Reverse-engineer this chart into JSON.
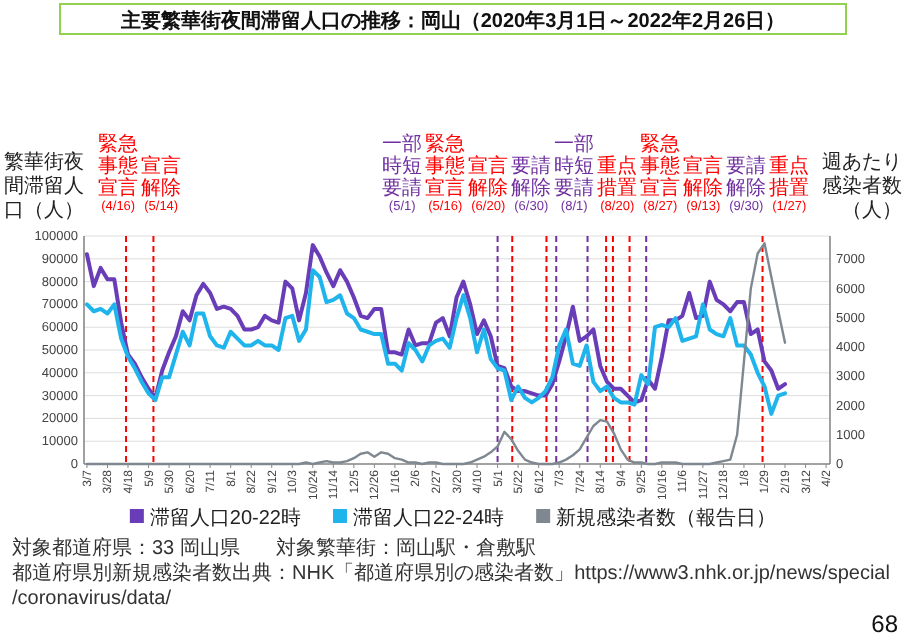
{
  "chart_data": {
    "type": "line",
    "title": "主要繁華街夜間滞留人口の推移：岡山（2020年3月1日～2022年2月26日）",
    "ylabel": "繁華街夜間滞留人口（人）",
    "y2label": "週あたり感染者数（人）",
    "x": [
      "2020-03-07",
      "2020-03-14",
      "2020-03-21",
      "2020-03-28",
      "2020-04-04",
      "2020-04-11",
      "2020-04-18",
      "2020-04-25",
      "2020-05-02",
      "2020-05-09",
      "2020-05-16",
      "2020-05-23",
      "2020-05-30",
      "2020-06-06",
      "2020-06-13",
      "2020-06-20",
      "2020-06-27",
      "2020-07-04",
      "2020-07-11",
      "2020-07-18",
      "2020-07-25",
      "2020-08-01",
      "2020-08-08",
      "2020-08-15",
      "2020-08-22",
      "2020-08-29",
      "2020-09-05",
      "2020-09-12",
      "2020-09-19",
      "2020-09-26",
      "2020-10-03",
      "2020-10-10",
      "2020-10-17",
      "2020-10-24",
      "2020-10-31",
      "2020-11-07",
      "2020-11-14",
      "2020-11-21",
      "2020-11-28",
      "2020-12-05",
      "2020-12-12",
      "2020-12-19",
      "2020-12-26",
      "2021-01-02",
      "2021-01-09",
      "2021-01-16",
      "2021-01-23",
      "2021-01-30",
      "2021-02-06",
      "2021-02-13",
      "2021-02-20",
      "2021-02-27",
      "2021-03-06",
      "2021-03-13",
      "2021-03-20",
      "2021-03-27",
      "2021-04-03",
      "2021-04-10",
      "2021-04-17",
      "2021-04-24",
      "2021-05-01",
      "2021-05-08",
      "2021-05-15",
      "2021-05-22",
      "2021-05-29",
      "2021-06-05",
      "2021-06-12",
      "2021-06-19",
      "2021-06-26",
      "2021-07-03",
      "2021-07-10",
      "2021-07-17",
      "2021-07-24",
      "2021-07-31",
      "2021-08-07",
      "2021-08-14",
      "2021-08-21",
      "2021-08-28",
      "2021-09-04",
      "2021-09-11",
      "2021-09-18",
      "2021-09-25",
      "2021-10-02",
      "2021-10-09",
      "2021-10-16",
      "2021-10-23",
      "2021-10-30",
      "2021-11-06",
      "2021-11-13",
      "2021-11-20",
      "2021-11-27",
      "2021-12-04",
      "2021-12-11",
      "2021-12-18",
      "2021-12-25",
      "2022-01-01",
      "2022-01-08",
      "2022-01-15",
      "2022-01-22",
      "2022-01-29",
      "2022-02-05",
      "2022-02-12",
      "2022-02-19"
    ],
    "xlim": [
      "2020-03-04",
      "2022-04-06"
    ],
    "xticks": [
      {
        "value": "2020-03-07",
        "label": "3/7"
      },
      {
        "value": "2020-03-28",
        "label": "3/28"
      },
      {
        "value": "2020-04-18",
        "label": "4/18"
      },
      {
        "value": "2020-05-09",
        "label": "5/9"
      },
      {
        "value": "2020-05-30",
        "label": "5/30"
      },
      {
        "value": "2020-06-20",
        "label": "6/20"
      },
      {
        "value": "2020-07-11",
        "label": "7/11"
      },
      {
        "value": "2020-08-01",
        "label": "8/1"
      },
      {
        "value": "2020-08-22",
        "label": "8/22"
      },
      {
        "value": "2020-09-12",
        "label": "9/12"
      },
      {
        "value": "2020-10-03",
        "label": "10/3"
      },
      {
        "value": "2020-10-24",
        "label": "10/24"
      },
      {
        "value": "2020-11-14",
        "label": "11/14"
      },
      {
        "value": "2020-12-05",
        "label": "12/5"
      },
      {
        "value": "2020-12-26",
        "label": "12/26"
      },
      {
        "value": "2021-01-16",
        "label": "1/16"
      },
      {
        "value": "2021-02-06",
        "label": "2/6"
      },
      {
        "value": "2021-02-27",
        "label": "2/27"
      },
      {
        "value": "2021-03-20",
        "label": "3/20"
      },
      {
        "value": "2021-04-10",
        "label": "4/10"
      },
      {
        "value": "2021-05-01",
        "label": "5/1"
      },
      {
        "value": "2021-05-22",
        "label": "5/22"
      },
      {
        "value": "2021-06-12",
        "label": "6/12"
      },
      {
        "value": "2021-07-03",
        "label": "7/3"
      },
      {
        "value": "2021-07-24",
        "label": "7/24"
      },
      {
        "value": "2021-08-14",
        "label": "8/14"
      },
      {
        "value": "2021-09-04",
        "label": "9/4"
      },
      {
        "value": "2021-09-25",
        "label": "9/25"
      },
      {
        "value": "2021-10-16",
        "label": "10/16"
      },
      {
        "value": "2021-11-06",
        "label": "11/6"
      },
      {
        "value": "2021-11-27",
        "label": "11/27"
      },
      {
        "value": "2021-12-18",
        "label": "12/18"
      },
      {
        "value": "2022-01-08",
        "label": "1/8"
      },
      {
        "value": "2022-01-29",
        "label": "1/29"
      },
      {
        "value": "2022-02-19",
        "label": "2/19"
      },
      {
        "value": "2022-03-12",
        "label": "3/12"
      },
      {
        "value": "2022-04-02",
        "label": "4/2"
      }
    ],
    "ylim": [
      0,
      100000
    ],
    "yticks": [
      0,
      10000,
      20000,
      30000,
      40000,
      50000,
      60000,
      70000,
      80000,
      90000,
      100000
    ],
    "y2lim": [
      0,
      7800
    ],
    "y2ticks": [
      0,
      1000,
      2000,
      3000,
      4000,
      5000,
      6000,
      7000
    ],
    "grid": "y",
    "legend": "bottom",
    "series": [
      {
        "name": "滞留人口20-22時",
        "color": "#6a3db8",
        "values": [
          92000,
          78000,
          86000,
          81000,
          81000,
          62000,
          48000,
          44000,
          38000,
          33000,
          29000,
          41000,
          49000,
          56000,
          67000,
          63000,
          74000,
          79000,
          75000,
          68000,
          69000,
          68000,
          65000,
          59000,
          59000,
          60000,
          65000,
          63000,
          62000,
          80000,
          77000,
          63000,
          75000,
          96000,
          91000,
          84000,
          78000,
          85000,
          80000,
          73000,
          65000,
          64000,
          68000,
          68000,
          49000,
          49000,
          48000,
          59000,
          52000,
          53000,
          53000,
          62000,
          64000,
          56000,
          73000,
          80000,
          70000,
          57000,
          63000,
          56000,
          43000,
          42000,
          34000,
          32000,
          32000,
          31000,
          30000,
          30000,
          35000,
          45000,
          56000,
          69000,
          54000,
          56000,
          59000,
          43000,
          36000,
          33000,
          33000,
          30000,
          27000,
          28000,
          37000,
          33000,
          47000,
          63000,
          63000,
          65000,
          75000,
          64000,
          65000,
          80000,
          72000,
          70000,
          67000,
          71000,
          71000,
          57000,
          59000,
          45000,
          41000,
          33000,
          35000
        ]
      },
      {
        "name": "滞留人口22-24時",
        "color": "#1fb5ec",
        "values": [
          70000,
          67000,
          68000,
          66000,
          70000,
          55000,
          47000,
          42000,
          36000,
          31000,
          28000,
          38000,
          38000,
          48000,
          58000,
          52000,
          66000,
          66000,
          56000,
          52000,
          51000,
          58000,
          55000,
          52000,
          52000,
          54000,
          52000,
          52000,
          50000,
          64000,
          65000,
          54000,
          59000,
          85000,
          82000,
          71000,
          72000,
          74000,
          66000,
          64000,
          59000,
          58000,
          57000,
          57000,
          44000,
          44000,
          41000,
          53000,
          50000,
          45000,
          52000,
          54000,
          55000,
          51000,
          64000,
          74000,
          64000,
          49000,
          59000,
          46000,
          42000,
          41000,
          28000,
          34000,
          29000,
          27000,
          29000,
          32000,
          38000,
          52000,
          59000,
          44000,
          43000,
          52000,
          36000,
          32000,
          34000,
          29000,
          27000,
          27000,
          26000,
          39000,
          35000,
          60000,
          61000,
          60000,
          64000,
          54000,
          55000,
          56000,
          70000,
          59000,
          57000,
          56000,
          64000,
          52000,
          52000,
          48000,
          40000,
          34000,
          22000,
          30000,
          31000
        ]
      },
      {
        "name": "新規感染者数（報告日）",
        "color": "#7f8890",
        "axis": "y2",
        "values": [
          0,
          0,
          0,
          0,
          0,
          0,
          0,
          0,
          0,
          0,
          0,
          0,
          0,
          0,
          0,
          0,
          0,
          0,
          0,
          0,
          0,
          0,
          0,
          0,
          0,
          0,
          0,
          0,
          0,
          0,
          0,
          0,
          50,
          0,
          50,
          100,
          50,
          50,
          100,
          200,
          350,
          400,
          250,
          400,
          350,
          200,
          150,
          50,
          50,
          0,
          50,
          50,
          0,
          0,
          0,
          0,
          50,
          150,
          250,
          400,
          600,
          1100,
          850,
          450,
          150,
          50,
          0,
          0,
          0,
          50,
          150,
          300,
          500,
          900,
          1300,
          1500,
          1450,
          1050,
          500,
          150,
          50,
          50,
          0,
          0,
          50,
          50,
          50,
          0,
          0,
          0,
          0,
          0,
          50,
          100,
          150,
          1000,
          3500,
          6000,
          7200,
          7550,
          6400,
          5250,
          4150
        ]
      }
    ],
    "ref_lines": [
      {
        "axis": "x",
        "value": "2020-04-16",
        "label": "緊急事態宣言(4/16)",
        "color": "#ff0000",
        "line_style": "dashed"
      },
      {
        "axis": "x",
        "value": "2020-05-14",
        "label": "宣言解除(5/14)",
        "color": "#ff0000",
        "line_style": "dashed"
      },
      {
        "axis": "x",
        "value": "2021-05-01",
        "label": "一部時短要請(5/1)",
        "color": "#7030a0",
        "line_style": "dashed"
      },
      {
        "axis": "x",
        "value": "2021-05-16",
        "label": "緊急事態宣言(5/16)",
        "color": "#ff0000",
        "line_style": "dashed"
      },
      {
        "axis": "x",
        "value": "2021-06-20",
        "label": "宣言解除(6/20)",
        "color": "#ff0000",
        "line_style": "dashed"
      },
      {
        "axis": "x",
        "value": "2021-06-30",
        "label": "要請解除(6/30)",
        "color": "#7030a0",
        "line_style": "dashed"
      },
      {
        "axis": "x",
        "value": "2021-08-01",
        "label": "一部時短要請(8/1)",
        "color": "#7030a0",
        "line_style": "dashed"
      },
      {
        "axis": "x",
        "value": "2021-08-20",
        "label": "重点措置(8/20)",
        "color": "#ff0000",
        "line_style": "dashed"
      },
      {
        "axis": "x",
        "value": "2021-08-27",
        "label": "緊急事態宣言(8/27)",
        "color": "#ff0000",
        "line_style": "dashed"
      },
      {
        "axis": "x",
        "value": "2021-09-13",
        "label": "宣言解除(9/13)",
        "color": "#ff0000",
        "line_style": "dashed"
      },
      {
        "axis": "x",
        "value": "2021-09-30",
        "label": "要請解除(9/30)",
        "color": "#7030a0",
        "line_style": "dashed"
      },
      {
        "axis": "x",
        "value": "2022-01-27",
        "label": "重点措置(1/27)",
        "color": "#ff0000",
        "line_style": "dashed"
      }
    ],
    "annotations": [
      "対象都道府県：33 岡山県",
      "対象繁華街：岡山駅・倉敷駅",
      "都道府県別新規感染者数出典：NHK「都道府県別の感染者数」https://www3.nhk.or.jp/news/special/coronavirus/data/",
      "68"
    ]
  }
}
